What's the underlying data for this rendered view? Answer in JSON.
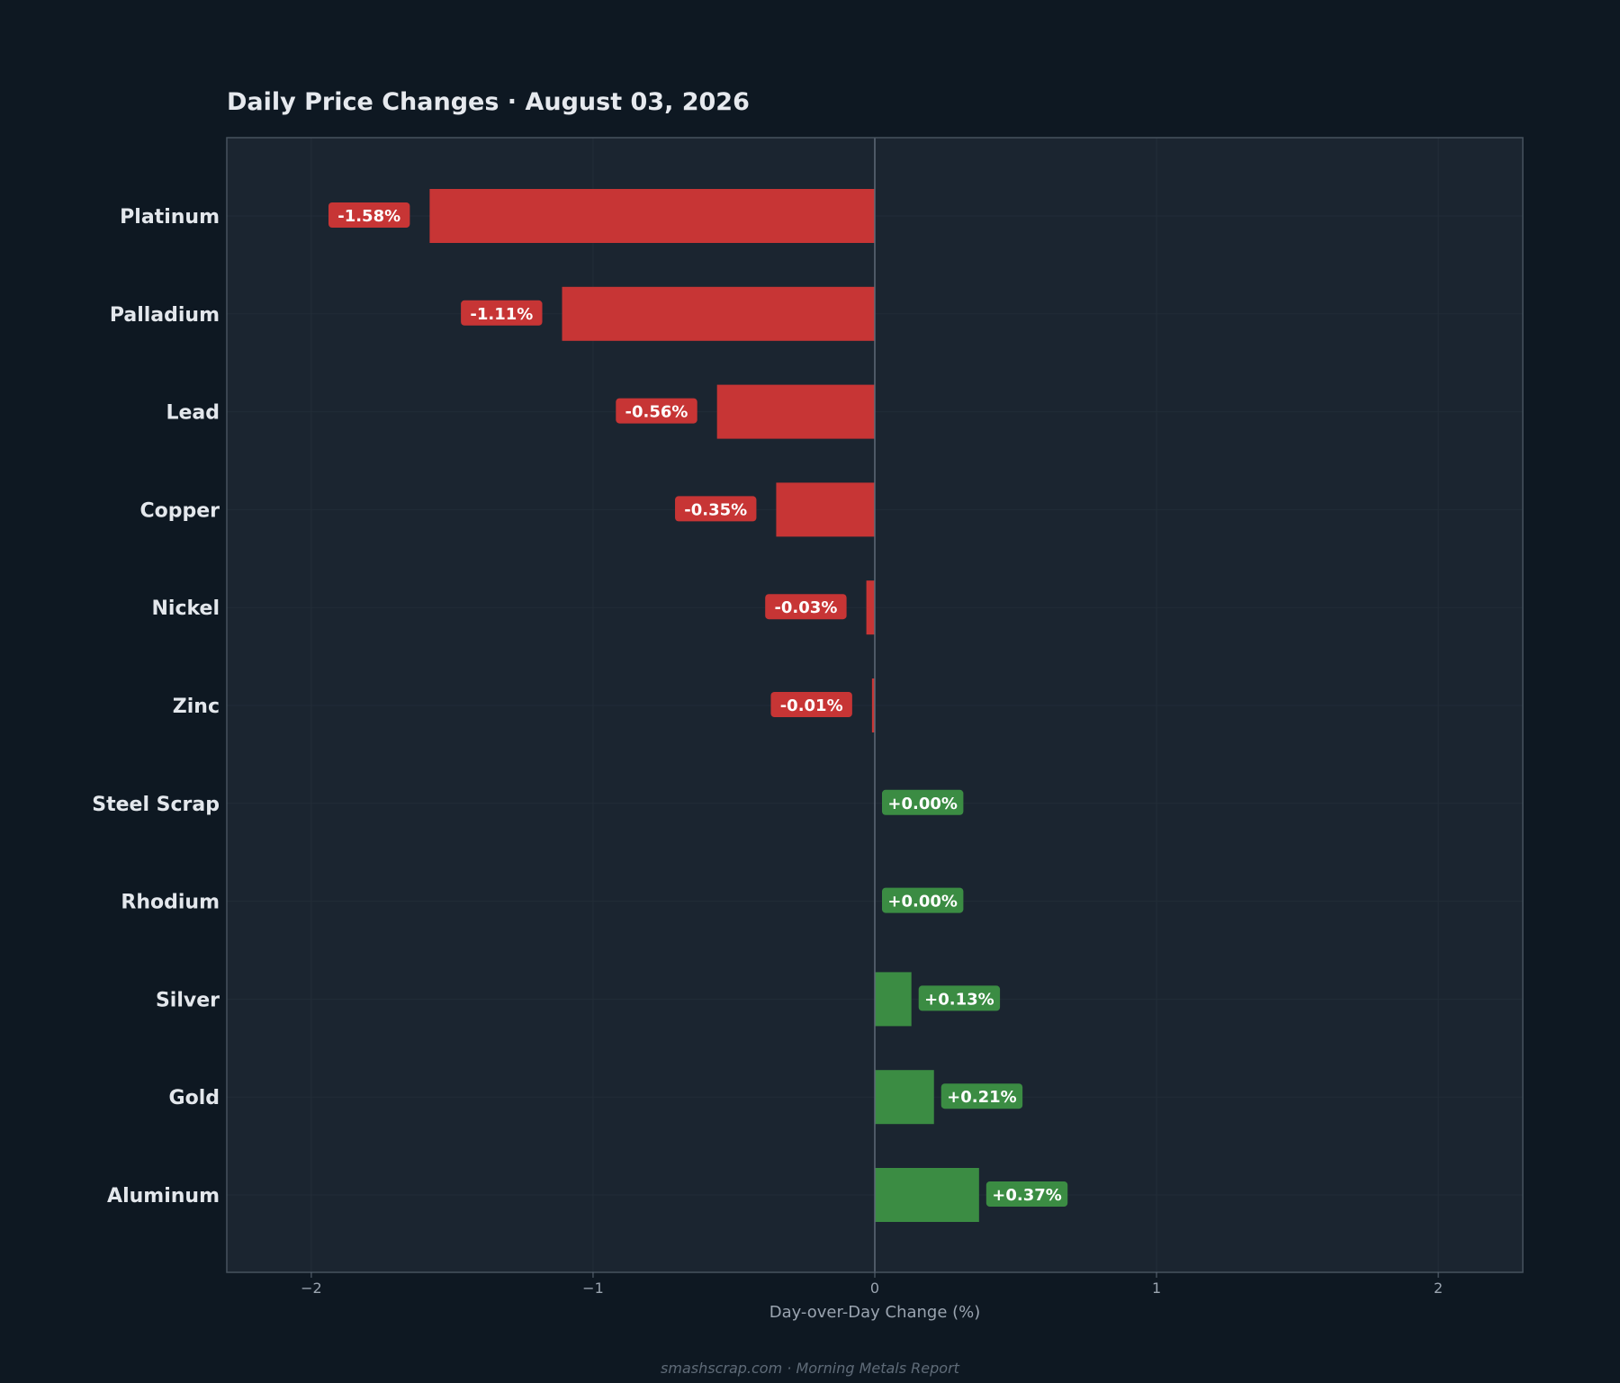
{
  "chart_data": {
    "type": "bar",
    "orientation": "horizontal",
    "title": "Daily Price Changes  ·  August 03, 2026",
    "xlabel": "Day-over-Day Change (%)",
    "ylabel": "",
    "xlim": [
      -2.3,
      2.3
    ],
    "xticks": [
      -2,
      -1,
      0,
      1,
      2
    ],
    "xtick_labels": [
      "−2",
      "−1",
      "0",
      "1",
      "2"
    ],
    "grid": true,
    "categories": [
      "Platinum",
      "Palladium",
      "Lead",
      "Copper",
      "Nickel",
      "Zinc",
      "Steel Scrap",
      "Rhodium",
      "Silver",
      "Gold",
      "Aluminum"
    ],
    "values": [
      -1.58,
      -1.11,
      -0.56,
      -0.35,
      -0.03,
      -0.01,
      0.0,
      0.0,
      0.13,
      0.21,
      0.37
    ],
    "value_labels": [
      "-1.58%",
      "-1.11%",
      "-0.56%",
      "-0.35%",
      "-0.03%",
      "-0.01%",
      "+0.00%",
      "+0.00%",
      "+0.13%",
      "+0.21%",
      "+0.37%"
    ],
    "colors": {
      "negative": "#c73535",
      "positive": "#3b8c43",
      "plot_background": "#1b2530",
      "page_background": "#0e1822",
      "frame": "#46525e",
      "zero_line": "#5f6b78"
    }
  },
  "footer": {
    "text": "smashscrap.com  ·  Morning Metals Report"
  }
}
